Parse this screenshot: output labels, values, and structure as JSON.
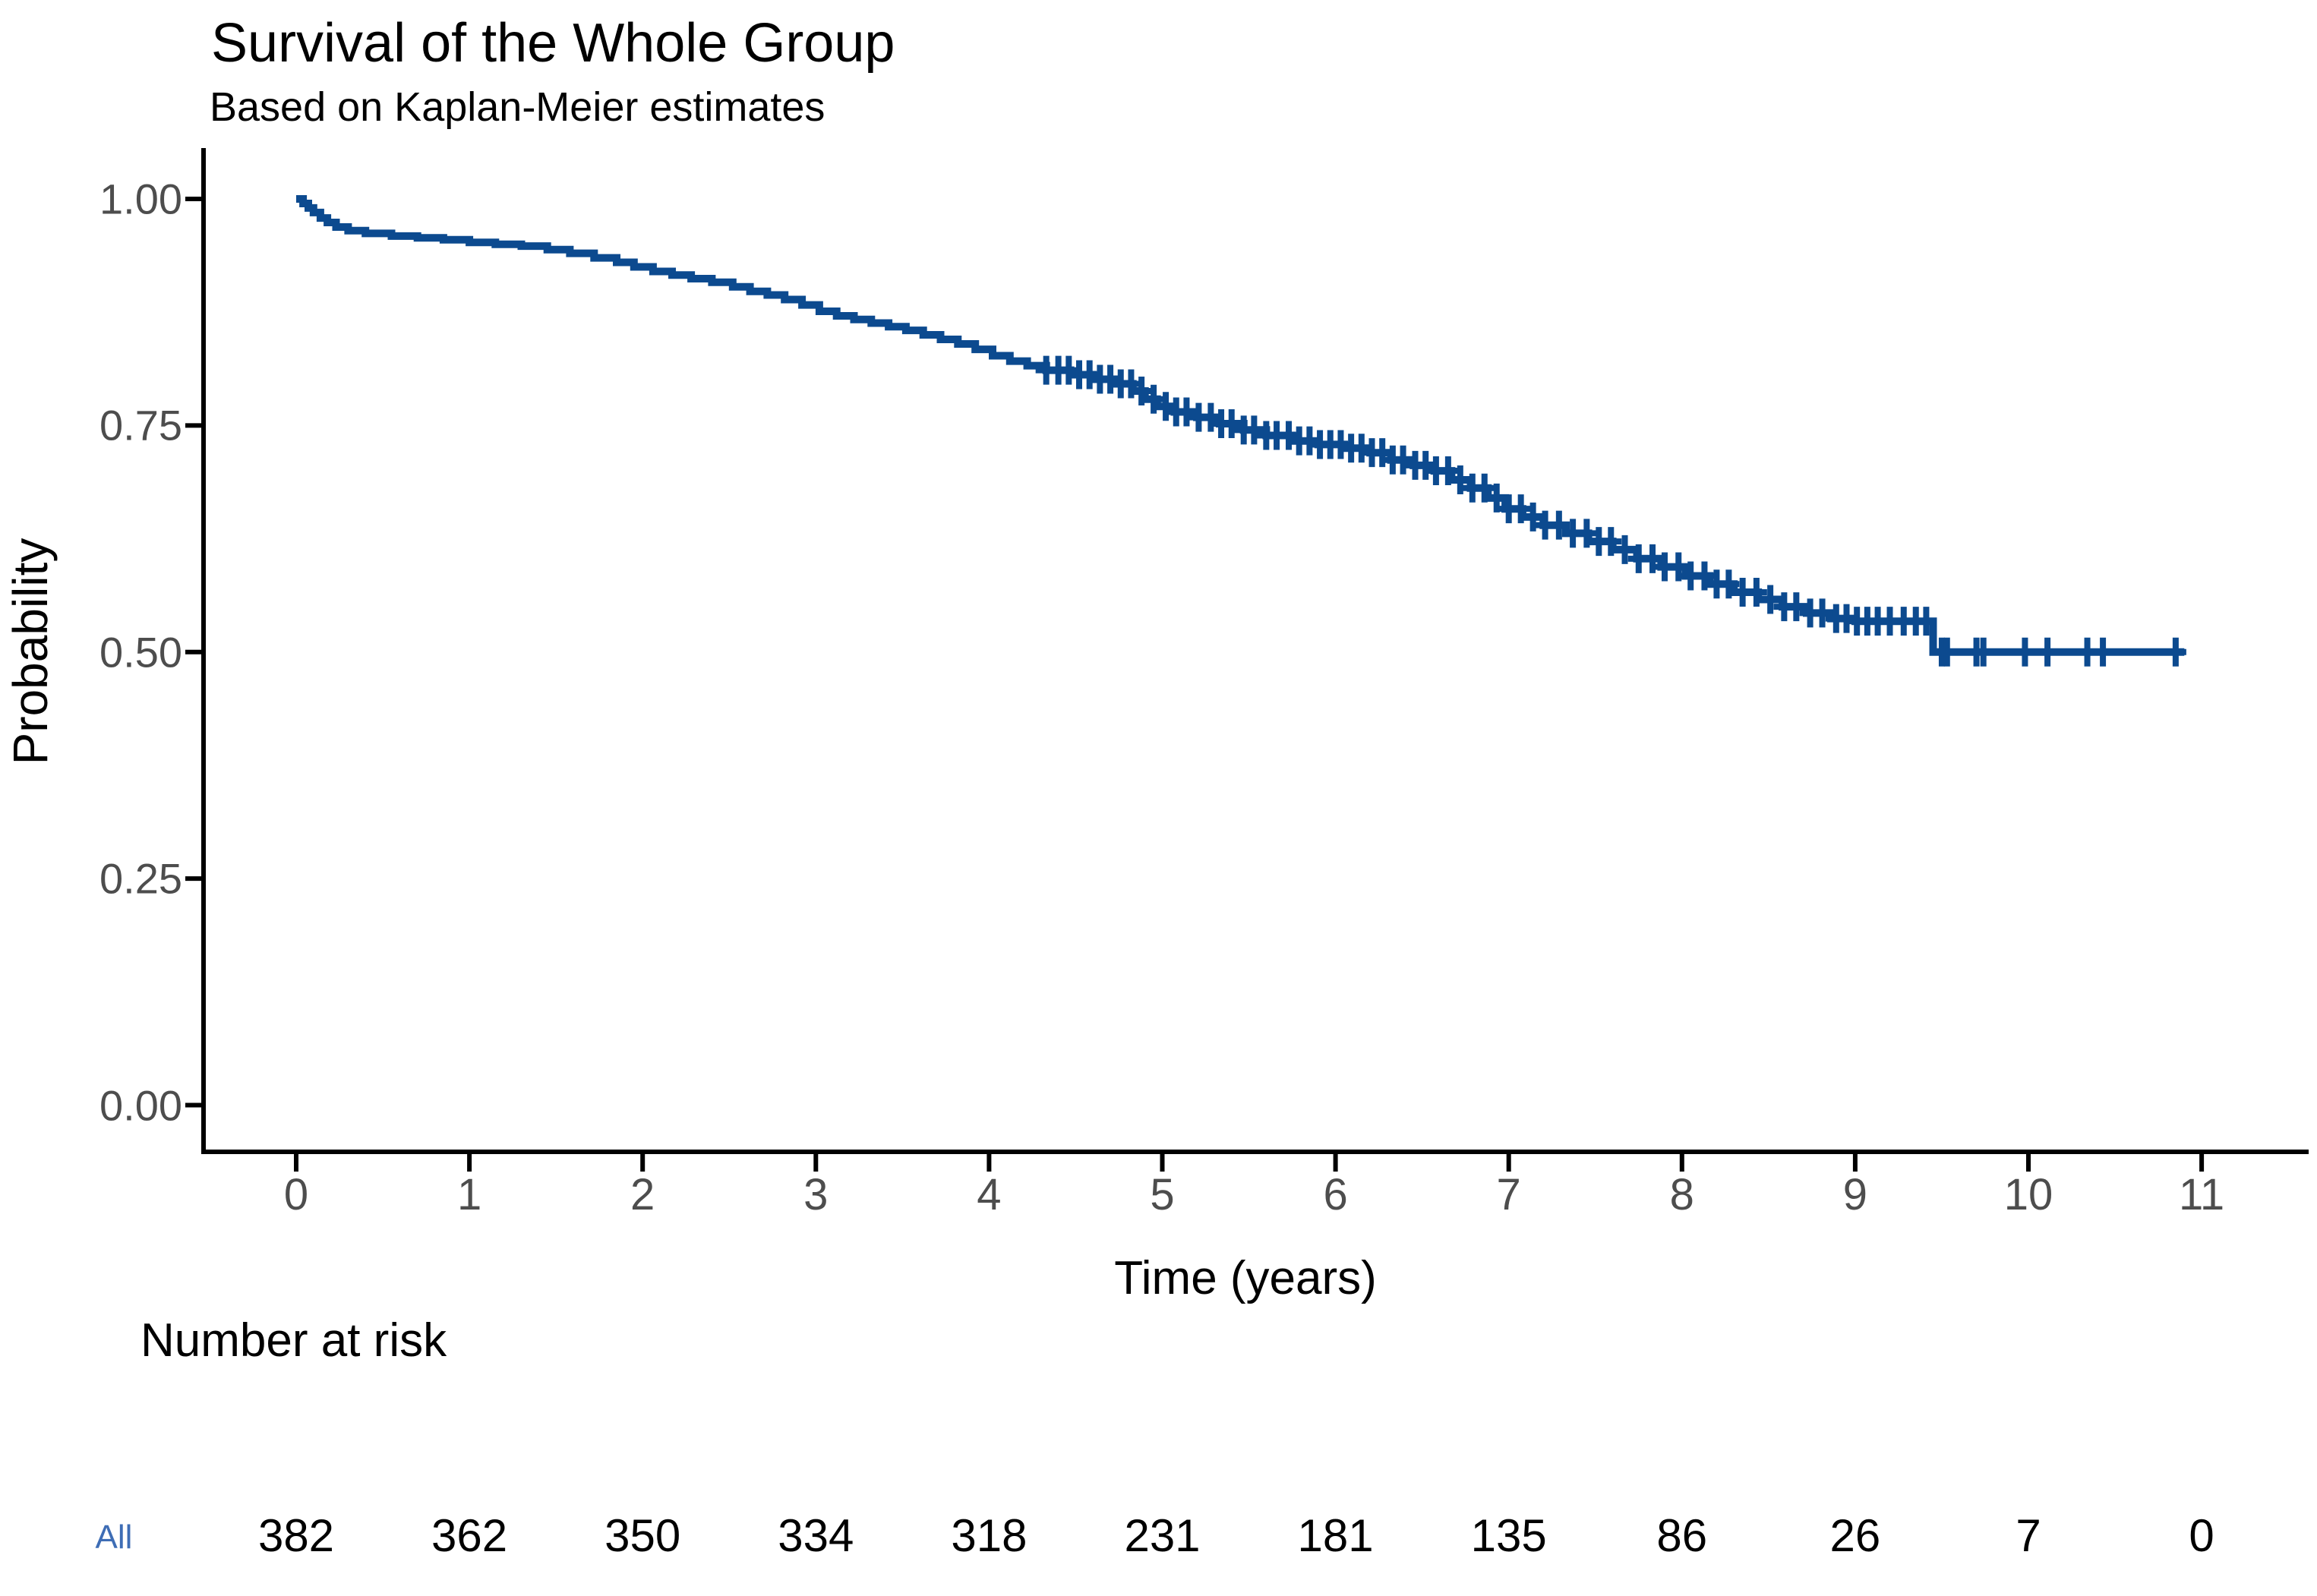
{
  "title": "Survival of the Whole Group",
  "subtitle": "Based on Kaplan-Meier estimates",
  "y_axis": {
    "label": "Probability",
    "tick_labels": [
      "1.00",
      "0.75",
      "0.50",
      "0.25",
      "0.00"
    ],
    "tick_values": [
      1.0,
      0.75,
      0.5,
      0.25,
      0.0
    ]
  },
  "x_axis": {
    "label": "Time (years)",
    "tick_labels": [
      "0",
      "1",
      "2",
      "3",
      "4",
      "5",
      "6",
      "7",
      "8",
      "9",
      "10",
      "11"
    ],
    "tick_values": [
      0,
      1,
      2,
      3,
      4,
      5,
      6,
      7,
      8,
      9,
      10,
      11
    ]
  },
  "risk_table": {
    "title": "Number at risk",
    "rows": [
      {
        "label": "All",
        "counts": [
          "382",
          "362",
          "350",
          "334",
          "318",
          "231",
          "181",
          "135",
          "86",
          "26",
          "7",
          "0"
        ]
      }
    ]
  },
  "colors": {
    "curve": "#0c4a8f",
    "censor_mark": "#0c4a8f",
    "strata_label_text": "#3e6db5",
    "axis_line": "#000000",
    "tick_text": "#4d4d4d",
    "title_text": "#000000",
    "background": "#ffffff"
  },
  "chart_data": {
    "type": "line",
    "subtype": "kaplan-meier-step-curve",
    "title": "Survival of the Whole Group",
    "subtitle": "Based on Kaplan-Meier estimates",
    "xlabel": "Time (years)",
    "ylabel": "Probability",
    "xlim": [
      0,
      11
    ],
    "ylim": [
      0.0,
      1.0
    ],
    "grid": false,
    "legend": "none",
    "series_name": "All",
    "steps": [
      [
        0.0,
        1.0
      ],
      [
        0.04,
        0.995
      ],
      [
        0.07,
        0.99
      ],
      [
        0.1,
        0.985
      ],
      [
        0.14,
        0.979
      ],
      [
        0.18,
        0.974
      ],
      [
        0.23,
        0.969
      ],
      [
        0.3,
        0.965
      ],
      [
        0.4,
        0.962
      ],
      [
        0.55,
        0.959
      ],
      [
        0.7,
        0.957
      ],
      [
        0.85,
        0.955
      ],
      [
        1.0,
        0.952
      ],
      [
        1.15,
        0.95
      ],
      [
        1.3,
        0.948
      ],
      [
        1.45,
        0.944
      ],
      [
        1.58,
        0.94
      ],
      [
        1.72,
        0.935
      ],
      [
        1.85,
        0.93
      ],
      [
        1.95,
        0.925
      ],
      [
        2.06,
        0.92
      ],
      [
        2.17,
        0.916
      ],
      [
        2.28,
        0.912
      ],
      [
        2.4,
        0.908
      ],
      [
        2.52,
        0.903
      ],
      [
        2.62,
        0.898
      ],
      [
        2.72,
        0.894
      ],
      [
        2.82,
        0.889
      ],
      [
        2.92,
        0.883
      ],
      [
        3.02,
        0.876
      ],
      [
        3.12,
        0.871
      ],
      [
        3.22,
        0.867
      ],
      [
        3.32,
        0.863
      ],
      [
        3.42,
        0.859
      ],
      [
        3.52,
        0.855
      ],
      [
        3.62,
        0.85
      ],
      [
        3.72,
        0.845
      ],
      [
        3.82,
        0.84
      ],
      [
        3.92,
        0.834
      ],
      [
        4.02,
        0.827
      ],
      [
        4.12,
        0.821
      ],
      [
        4.22,
        0.816
      ],
      [
        4.33,
        0.811
      ],
      [
        4.47,
        0.806
      ],
      [
        4.6,
        0.801
      ],
      [
        4.73,
        0.796
      ],
      [
        4.83,
        0.788
      ],
      [
        4.9,
        0.779
      ],
      [
        4.97,
        0.771
      ],
      [
        5.07,
        0.765
      ],
      [
        5.2,
        0.759
      ],
      [
        5.33,
        0.752
      ],
      [
        5.47,
        0.745
      ],
      [
        5.6,
        0.739
      ],
      [
        5.75,
        0.733
      ],
      [
        5.9,
        0.729
      ],
      [
        6.05,
        0.725
      ],
      [
        6.2,
        0.72
      ],
      [
        6.32,
        0.712
      ],
      [
        6.45,
        0.706
      ],
      [
        6.57,
        0.7
      ],
      [
        6.67,
        0.69
      ],
      [
        6.78,
        0.681
      ],
      [
        6.88,
        0.67
      ],
      [
        6.98,
        0.658
      ],
      [
        7.08,
        0.649
      ],
      [
        7.2,
        0.64
      ],
      [
        7.33,
        0.631
      ],
      [
        7.46,
        0.622
      ],
      [
        7.6,
        0.613
      ],
      [
        7.74,
        0.603
      ],
      [
        7.88,
        0.594
      ],
      [
        8.02,
        0.584
      ],
      [
        8.16,
        0.575
      ],
      [
        8.3,
        0.566
      ],
      [
        8.44,
        0.558
      ],
      [
        8.58,
        0.55
      ],
      [
        8.72,
        0.543
      ],
      [
        8.86,
        0.537
      ],
      [
        9.0,
        0.534
      ],
      [
        9.45,
        0.5
      ]
    ],
    "curve_end_time": 10.9,
    "censor_times": [
      4.33,
      4.4,
      4.46,
      4.52,
      4.58,
      4.64,
      4.7,
      4.76,
      4.82,
      4.88,
      4.95,
      5.02,
      5.08,
      5.14,
      5.21,
      5.28,
      5.34,
      5.4,
      5.47,
      5.53,
      5.6,
      5.66,
      5.73,
      5.79,
      5.85,
      5.91,
      5.97,
      6.03,
      6.09,
      6.15,
      6.21,
      6.27,
      6.33,
      6.39,
      6.46,
      6.52,
      6.58,
      6.65,
      6.72,
      6.79,
      6.86,
      6.93,
      7.0,
      7.07,
      7.14,
      7.21,
      7.29,
      7.37,
      7.45,
      7.52,
      7.59,
      7.67,
      7.75,
      7.83,
      7.9,
      7.98,
      8.05,
      8.13,
      8.2,
      8.27,
      8.35,
      8.43,
      8.51,
      8.59,
      8.66,
      8.74,
      8.81,
      8.89,
      8.95,
      9.01,
      9.07,
      9.13,
      9.2,
      9.28,
      9.35,
      9.41,
      9.5,
      9.53,
      9.7,
      9.74,
      9.98,
      10.11,
      10.34,
      10.43,
      10.85
    ],
    "number_at_risk": {
      "times": [
        0,
        1,
        2,
        3,
        4,
        5,
        6,
        7,
        8,
        9,
        10,
        11
      ],
      "All": [
        382,
        362,
        350,
        334,
        318,
        231,
        181,
        135,
        86,
        26,
        7,
        0
      ]
    }
  }
}
